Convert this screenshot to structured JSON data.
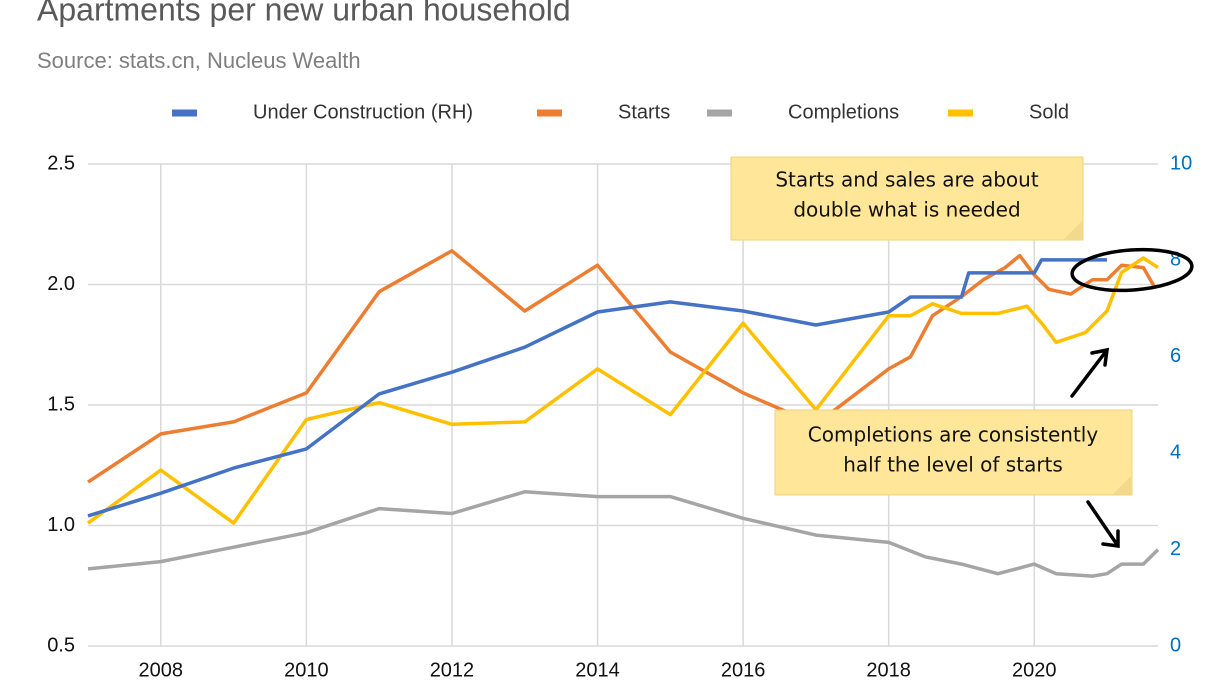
{
  "chart_data": {
    "type": "line",
    "title": "Apartments per new urban household",
    "subtitle": "Source: stats.cn, Nucleus Wealth",
    "xlim": [
      2007,
      2021.7
    ],
    "xticks": [
      2008,
      2010,
      2012,
      2014,
      2016,
      2018,
      2020
    ],
    "ylim": [
      0.5,
      2.5
    ],
    "yticks": [
      0.5,
      {
        "value": 1,
        "label": "1.0"
      },
      1.5,
      {
        "value": 2,
        "label": "2.0"
      },
      2.5
    ],
    "y2lim": [
      0,
      10
    ],
    "y2ticks": [
      0,
      2,
      4,
      6,
      8,
      10
    ],
    "grid": true,
    "legend": "top",
    "series": [
      {
        "name": "Under Construction (RH)",
        "color": "#4472c4",
        "axis": "y2",
        "x": [
          2007,
          2008,
          2009,
          2010,
          2011,
          2012,
          2013,
          2014,
          2015,
          2016,
          2017,
          2018,
          2018.3,
          2019.0,
          2019.1,
          2020.0,
          2020.1,
          2021.0
        ],
        "values": [
          2.7,
          3.17,
          3.69,
          4.09,
          5.23,
          5.68,
          6.2,
          6.93,
          7.14,
          6.95,
          6.66,
          6.93,
          7.24,
          7.24,
          7.74,
          7.74,
          8.01,
          8.01
        ]
      },
      {
        "name": "Starts",
        "color": "#ed7d31",
        "x": [
          2007,
          2008,
          2009,
          2010,
          2011,
          2012,
          2013,
          2014,
          2015,
          2016,
          2017,
          2018,
          2018.3,
          2018.6,
          2019.0,
          2019.3,
          2019.6,
          2019.8,
          2020.0,
          2020.2,
          2020.5,
          2020.8,
          2021.0,
          2021.2,
          2021.5,
          2021.65
        ],
        "values": [
          1.18,
          1.38,
          1.43,
          1.55,
          1.97,
          2.14,
          1.89,
          2.08,
          1.72,
          1.55,
          1.42,
          1.65,
          1.7,
          1.87,
          1.95,
          2.02,
          2.07,
          2.12,
          2.04,
          1.98,
          1.96,
          2.02,
          2.02,
          2.08,
          2.07,
          1.99
        ]
      },
      {
        "name": "Completions",
        "color": "#a5a5a5",
        "x": [
          2007,
          2008,
          2009,
          2010,
          2011,
          2012,
          2013,
          2014,
          2015,
          2016,
          2017,
          2018,
          2018.5,
          2019,
          2019.5,
          2020,
          2020.3,
          2020.8,
          2021.0,
          2021.2,
          2021.5,
          2021.7
        ],
        "values": [
          0.82,
          0.85,
          0.91,
          0.97,
          1.07,
          1.05,
          1.14,
          1.12,
          1.12,
          1.03,
          0.96,
          0.93,
          0.87,
          0.84,
          0.8,
          0.84,
          0.8,
          0.79,
          0.8,
          0.84,
          0.84,
          0.9
        ]
      },
      {
        "name": "Sold",
        "color": "#ffc000",
        "x": [
          2007,
          2008,
          2009,
          2010,
          2011,
          2012,
          2013,
          2014,
          2015,
          2016,
          2017,
          2018,
          2018.3,
          2018.6,
          2019,
          2019.5,
          2019.9,
          2020.1,
          2020.3,
          2020.7,
          2021.0,
          2021.2,
          2021.5,
          2021.7
        ],
        "values": [
          1.01,
          1.23,
          1.01,
          1.44,
          1.51,
          1.42,
          1.43,
          1.65,
          1.46,
          1.84,
          1.48,
          1.87,
          1.87,
          1.92,
          1.88,
          1.88,
          1.91,
          1.84,
          1.76,
          1.8,
          1.89,
          2.05,
          2.11,
          2.07
        ]
      }
    ],
    "annotations": [
      {
        "lines": [
          "Starts and sales are about",
          "double what is needed"
        ]
      },
      {
        "lines": [
          "Completions are consistently",
          "half the level of starts"
        ]
      }
    ]
  }
}
